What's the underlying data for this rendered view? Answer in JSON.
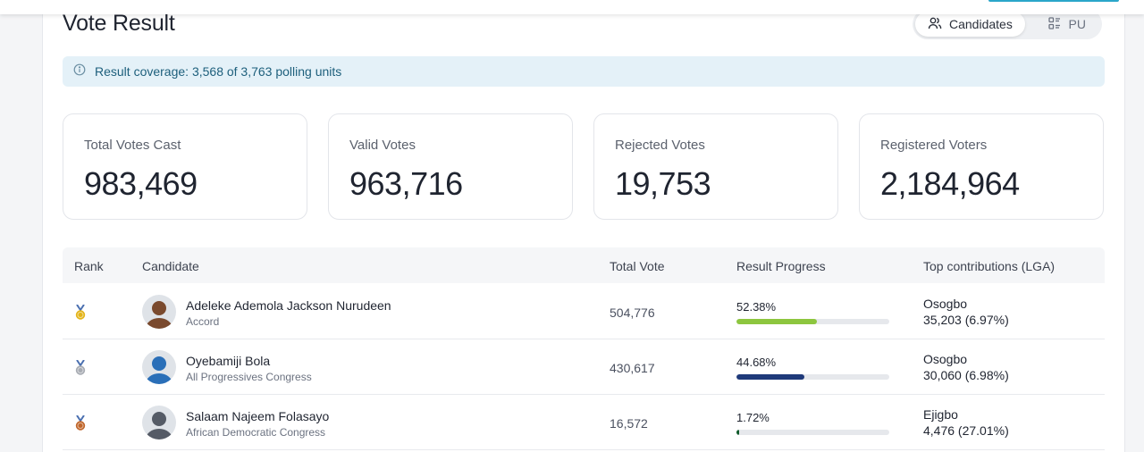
{
  "header": {
    "title": "Vote Result"
  },
  "view_toggle": {
    "candidates_label": "Candidates",
    "pu_label": "PU",
    "active": "Candidates"
  },
  "coverage": {
    "text": "Result coverage: 3,568 of 3,763 polling units"
  },
  "stats": [
    {
      "label": "Total Votes Cast",
      "value": "983,469"
    },
    {
      "label": "Valid Votes",
      "value": "963,716"
    },
    {
      "label": "Rejected Votes",
      "value": "19,753"
    },
    {
      "label": "Registered Voters",
      "value": "2,184,964"
    }
  ],
  "table": {
    "headers": {
      "rank": "Rank",
      "candidate": "Candidate",
      "total_vote": "Total Vote",
      "progress": "Result Progress",
      "top_lga": "Top contributions (LGA)"
    },
    "rows": [
      {
        "rank_icon": "gold-medal-icon",
        "medal_color": "#e3b419",
        "name": "Adeleke Ademola Jackson Nurudeen",
        "party": "Accord",
        "total": "504,776",
        "percent_label": "52.38%",
        "percent": 52.38,
        "bar_color": "#8dc63f",
        "lga": "Osogbo",
        "lga_value": "35,203 (6.97%)",
        "avatar_color": "#7a4a2e"
      },
      {
        "rank_icon": "silver-medal-icon",
        "medal_color": "#a8acb3",
        "name": "Oyebamiji Bola",
        "party": "All Progressives Congress",
        "total": "430,617",
        "percent_label": "44.68%",
        "percent": 44.68,
        "bar_color": "#1f3a7a",
        "lga": "Osogbo",
        "lga_value": "30,060 (6.98%)",
        "avatar_color": "#2a6fb8"
      },
      {
        "rank_icon": "bronze-medal-icon",
        "medal_color": "#c0662b",
        "name": "Salaam Najeem Folasayo",
        "party": "African Democratic Congress",
        "total": "16,572",
        "percent_label": "1.72%",
        "percent": 1.72,
        "bar_color": "#0f5a2a",
        "lga": "Ejigbo",
        "lga_value": "4,476 (27.01%)",
        "avatar_color": "#555b66"
      }
    ]
  }
}
